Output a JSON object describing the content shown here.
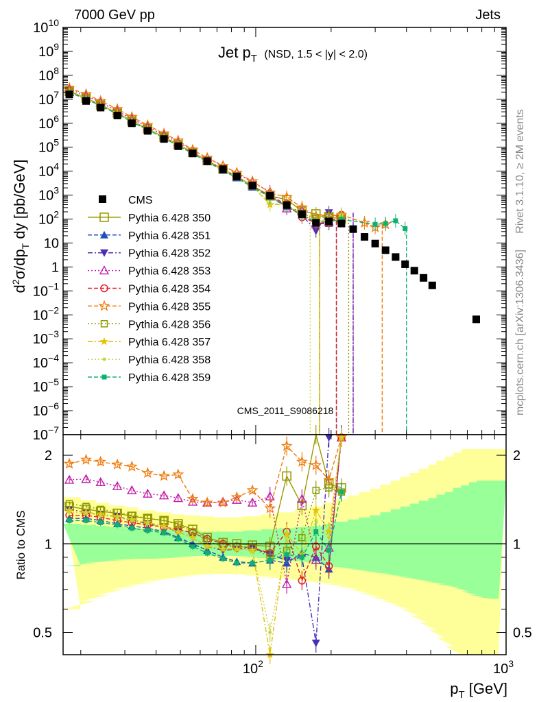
{
  "header": {
    "left": "7000 GeV pp",
    "right": "Jets",
    "rivet": "Rivet 3.1.10, ≥ 2M events",
    "mcplots": "mcplots.cern.ch [arXiv:1306.3436]",
    "analysis_id": "CMS_2011_S9086218"
  },
  "chart_data": {
    "type": "scatter",
    "title": "Jet p_T (NSD, 1.5 < |y| < 2.0)",
    "xlabel": "p_T [GeV]",
    "ylabel": "d²σ/dp_T dy [pb/GeV]",
    "ratio_ylabel": "Ratio to CMS",
    "xscale": "log",
    "yscale": "log",
    "xlim": [
      17,
      1000
    ],
    "ylim": [
      1e-07,
      10000000000.0
    ],
    "ratio_ylim": [
      0.42,
      2.35
    ],
    "ratio_yscale": "log",
    "x_tick_labels": [
      {
        "value": 100,
        "label": "10",
        "exp": "2"
      },
      {
        "value": 1000,
        "label": "10",
        "exp": "3"
      }
    ],
    "y_tick_labels": [
      {
        "value": 10000000000.0,
        "label": "10",
        "exp": "10"
      },
      {
        "value": 1000000000.0,
        "label": "10",
        "exp": "9"
      },
      {
        "value": 100000000.0,
        "label": "10",
        "exp": "8"
      },
      {
        "value": 10000000.0,
        "label": "10",
        "exp": "7"
      },
      {
        "value": 1000000.0,
        "label": "10",
        "exp": "6"
      },
      {
        "value": 100000.0,
        "label": "10",
        "exp": "5"
      },
      {
        "value": 10000.0,
        "label": "10",
        "exp": "4"
      },
      {
        "value": 1000.0,
        "label": "10",
        "exp": "3"
      },
      {
        "value": 100,
        "label": "10",
        "exp": "2"
      },
      {
        "value": 10,
        "label": "10",
        "exp": ""
      },
      {
        "value": 1,
        "label": "1",
        "exp": ""
      },
      {
        "value": 0.1,
        "label": "10",
        "exp": "−1"
      },
      {
        "value": 0.01,
        "label": "10",
        "exp": "−2"
      },
      {
        "value": 0.001,
        "label": "10",
        "exp": "−3"
      },
      {
        "value": 0.0001,
        "label": "10",
        "exp": "−4"
      },
      {
        "value": 1e-05,
        "label": "10",
        "exp": "−5"
      },
      {
        "value": 1e-06,
        "label": "10",
        "exp": "−6"
      },
      {
        "value": 1e-07,
        "label": "10",
        "exp": "−7"
      }
    ],
    "ratio_tick_labels": [
      {
        "value": 0.5,
        "label": "0.5"
      },
      {
        "value": 1,
        "label": "1"
      },
      {
        "value": 2,
        "label": "2"
      }
    ],
    "x": [
      18,
      21,
      24,
      28,
      32,
      37,
      43,
      49,
      56,
      64,
      74,
      84,
      97,
      114,
      133,
      153,
      174,
      196,
      220,
      245,
      272,
      300,
      330,
      362,
      395,
      430,
      468,
      507,
      548,
      592,
      638,
      686,
      737,
      790,
      846,
      905,
      967
    ],
    "bin_edges": [
      17,
      20,
      23,
      26,
      30,
      34,
      40,
      46,
      52,
      60,
      68,
      80,
      89,
      105,
      123,
      143,
      164,
      185,
      208,
      233,
      258,
      286,
      314,
      346,
      378,
      413,
      448,
      489,
      527,
      569,
      615,
      661,
      711,
      764,
      817,
      876,
      934,
      1000
    ],
    "cms": {
      "name": "CMS",
      "x": [
        18,
        21,
        24,
        28,
        32,
        37,
        43,
        49,
        56,
        64,
        74,
        84,
        97,
        114,
        133,
        153,
        174,
        196,
        220,
        245,
        272,
        300,
        330,
        362,
        395,
        430,
        468,
        507,
        760
      ],
      "y": [
        16000000,
        8500000,
        4500000,
        2100000,
        1000000,
        480000,
        220000,
        110000,
        55000,
        26000,
        12000,
        6000,
        2500,
        950,
        380,
        160,
        70,
        80,
        65,
        38,
        18,
        9.5,
        5,
        2.6,
        1.3,
        0.7,
        0.35,
        0.17,
        0.0065
      ]
    },
    "bands": {
      "inner_color": "#99ff99",
      "outer_color": "#ffff99",
      "inner_low": [
        0.84,
        0.86,
        0.87,
        0.88,
        0.89,
        0.89,
        0.89,
        0.9,
        0.91,
        0.91,
        0.91,
        0.91,
        0.9,
        0.89,
        0.88,
        0.87,
        0.86,
        0.84,
        0.83,
        0.82,
        0.81,
        0.8,
        0.79,
        0.78,
        0.77,
        0.76,
        0.75,
        0.74,
        0.73,
        0.72,
        0.71,
        0.69,
        0.67,
        0.66,
        0.65,
        0.65,
        0.65
      ],
      "inner_high": [
        1.17,
        1.16,
        1.15,
        1.14,
        1.13,
        1.12,
        1.12,
        1.11,
        1.11,
        1.1,
        1.1,
        1.1,
        1.11,
        1.12,
        1.13,
        1.14,
        1.15,
        1.17,
        1.19,
        1.21,
        1.23,
        1.25,
        1.28,
        1.31,
        1.34,
        1.37,
        1.4,
        1.43,
        1.47,
        1.5,
        1.55,
        1.58,
        1.62,
        1.64,
        1.64,
        1.64,
        1.64
      ],
      "outer_low": [
        0.6,
        0.64,
        0.67,
        0.7,
        0.72,
        0.74,
        0.76,
        0.77,
        0.78,
        0.79,
        0.79,
        0.79,
        0.78,
        0.77,
        0.76,
        0.75,
        0.74,
        0.73,
        0.72,
        0.7,
        0.68,
        0.66,
        0.64,
        0.62,
        0.6,
        0.57,
        0.54,
        0.51,
        0.48,
        0.45,
        0.42,
        0.42,
        0.42,
        0.42,
        0.42,
        0.42,
        0.42
      ],
      "outer_high": [
        1.44,
        1.41,
        1.38,
        1.35,
        1.33,
        1.3,
        1.28,
        1.26,
        1.25,
        1.24,
        1.23,
        1.23,
        1.24,
        1.26,
        1.28,
        1.31,
        1.34,
        1.38,
        1.42,
        1.46,
        1.5,
        1.54,
        1.59,
        1.64,
        1.69,
        1.74,
        1.8,
        1.86,
        1.92,
        1.98,
        2.04,
        2.1,
        2.1,
        2.1,
        2.1,
        2.1,
        2.1
      ]
    },
    "series": [
      {
        "name": "Pythia 6.428 350",
        "color": "#999900",
        "marker": "open-square",
        "dash": "solid",
        "ratio": [
          1.34,
          1.31,
          1.29,
          1.27,
          1.24,
          1.22,
          1.2,
          1.17,
          1.12,
          1.05,
          1.01,
          1.0,
          0.99,
          0.98,
          1.7,
          1.35,
          2.35,
          1.6,
          1.55
        ],
        "end_x": 180
      },
      {
        "name": "Pythia 6.428 351",
        "color": "#1f4fbf",
        "marker": "filled-triangle-up",
        "dash": "dashed",
        "ratio": [
          1.22,
          1.22,
          1.2,
          1.17,
          1.15,
          1.13,
          1.1,
          1.05,
          1.0,
          0.95,
          0.9,
          0.87,
          0.86,
          0.88,
          0.86,
          0.93,
          0.9,
          0.82,
          2.4
        ],
        "end_x": 210
      },
      {
        "name": "Pythia 6.428 352",
        "color": "#4b2fb5",
        "marker": "filled-triangle-down",
        "dash": "dashdot",
        "ratio": [
          1.31,
          1.28,
          1.26,
          1.24,
          1.2,
          1.17,
          1.14,
          1.1,
          1.05,
          0.98,
          0.95,
          0.96,
          0.97,
          0.92,
          0.88,
          0.9,
          0.46,
          2.3
        ],
        "end_x": 245
      },
      {
        "name": "Pythia 6.428 353",
        "color": "#c01ba6",
        "marker": "open-triangle-up",
        "dash": "dotted",
        "ratio": [
          1.65,
          1.66,
          1.62,
          1.57,
          1.52,
          1.48,
          1.46,
          1.43,
          1.39,
          1.38,
          1.39,
          1.41,
          1.38,
          1.45,
          0.73,
          1.42,
          0.88,
          0.97,
          2.3
        ],
        "end_x": 245
      },
      {
        "name": "Pythia 6.428 354",
        "color": "#e0202a",
        "marker": "open-circle",
        "dash": "dashed",
        "ratio": [
          1.25,
          1.25,
          1.23,
          1.2,
          1.18,
          1.16,
          1.14,
          1.12,
          1.09,
          1.04,
          1.0,
          0.98,
          0.97,
          0.93,
          1.1,
          0.75,
          0.98,
          0.84,
          2.3
        ],
        "end_x": 210
      },
      {
        "name": "Pythia 6.428 355",
        "color": "#f07a0a",
        "marker": "open-star",
        "dash": "dashed",
        "ratio": [
          1.87,
          1.93,
          1.9,
          1.86,
          1.83,
          1.74,
          1.7,
          1.72,
          1.42,
          1.38,
          1.38,
          1.44,
          1.52,
          1.32,
          2.15,
          1.9,
          1.85,
          1.65,
          2.3
        ],
        "end_x": 320
      },
      {
        "name": "Pythia 6.428 356",
        "color": "#8a9a00",
        "marker": "open-square-small",
        "dash": "dotted",
        "ratio": [
          1.37,
          1.34,
          1.31,
          1.28,
          1.25,
          1.22,
          1.2,
          1.16,
          1.1,
          1.02,
          0.98,
          0.98,
          0.97,
          0.9,
          0.95,
          1.05,
          1.52,
          1.55,
          1.5
        ],
        "end_x": 235
      },
      {
        "name": "Pythia 6.428 357",
        "color": "#e6c200",
        "marker": "small-star",
        "dash": "dashdot",
        "ratio": [
          1.3,
          1.28,
          1.26,
          1.24,
          1.21,
          1.18,
          1.15,
          1.1,
          1.05,
          0.98,
          0.96,
          0.96,
          0.95,
          0.42,
          1.08,
          0.92,
          1.3,
          1.1,
          2.3
        ],
        "end_x": 180
      },
      {
        "name": "Pythia 6.428 358",
        "color": "#c8d43c",
        "marker": "small-dot",
        "dash": "dotted",
        "ratio": [
          1.28,
          1.27,
          1.25,
          1.23,
          1.2,
          1.17,
          1.14,
          1.1,
          1.04,
          0.99,
          0.97,
          0.96,
          0.95,
          0.5,
          1.02,
          0.9,
          1.2,
          1.05,
          2.3
        ],
        "end_x": 165
      },
      {
        "name": "Pythia 6.428 359",
        "color": "#10b070",
        "marker": "filled-square-small",
        "dash": "dashed",
        "ratio": [
          1.2,
          1.2,
          1.18,
          1.16,
          1.13,
          1.11,
          1.09,
          1.04,
          0.98,
          0.93,
          0.89,
          0.86,
          0.86,
          0.88,
          0.92,
          0.9,
          1.1,
          0.95,
          1.5
        ],
        "end_x": 400
      }
    ],
    "tail_points": [
      {
        "series": "Pythia 6.428 355",
        "x": [
          272,
          300,
          330
        ],
        "y": [
          70,
          45,
          60
        ]
      },
      {
        "series": "Pythia 6.428 359",
        "x": [
          300,
          330,
          362,
          395
        ],
        "y": [
          60,
          65,
          85,
          40
        ]
      }
    ],
    "legend": "left-middle"
  }
}
